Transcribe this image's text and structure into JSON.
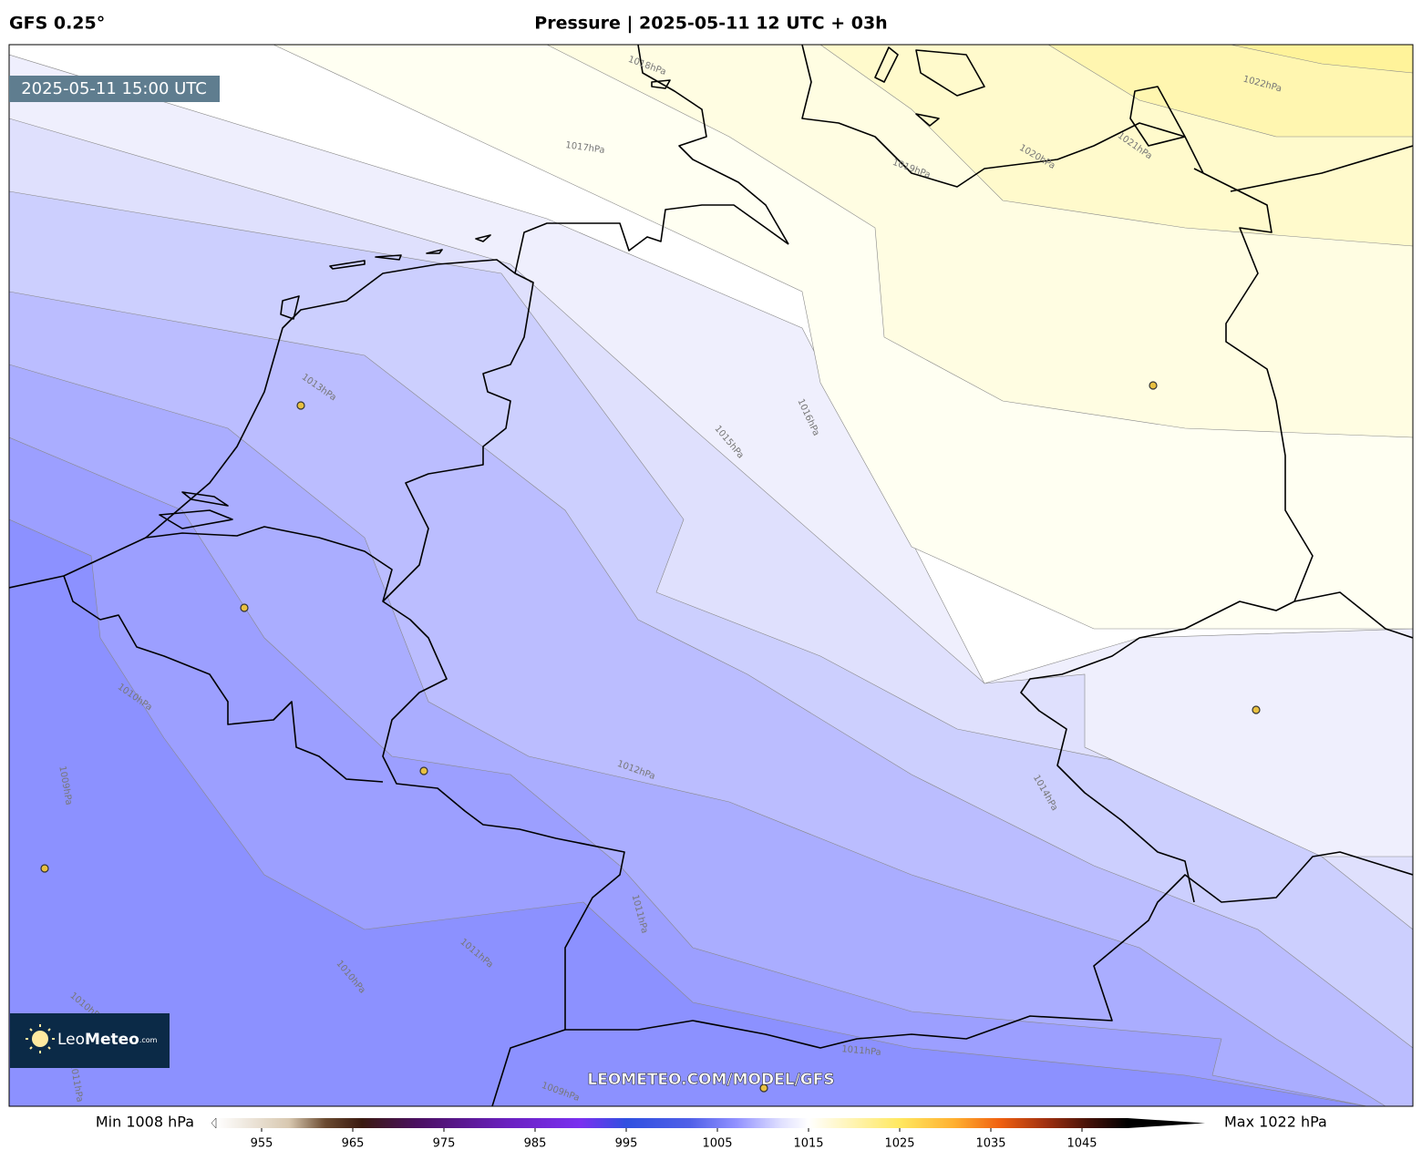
{
  "header": {
    "model": "GFS 0.25°",
    "title": "Pressure | 2025-05-11 12 UTC + 03h"
  },
  "map": {
    "valid_time": "2025-05-11 15:00 UTC",
    "watermark": "LEOMETEO.COM/MODEL/GFS",
    "contour_labels": [
      "1018hPa",
      "1017hPa",
      "1019hPa",
      "1020hPa",
      "1021hPa",
      "1022hPa",
      "1013hPa",
      "1016hPa",
      "1015hPa",
      "1012hPa",
      "1014hPa",
      "1010hPa",
      "1009hPa",
      "1011hPa",
      "1011hPa",
      "1010hPa",
      "1010hPa",
      "1011hPa",
      "1009hPa",
      "1011hPa"
    ]
  },
  "logo": {
    "leo": "Leo",
    "meteo": "Meteo",
    "com": ".com"
  },
  "colorbar": {
    "min_label": "Min 1008 hPa",
    "max_label": "Max 1022 hPa",
    "range": [
      950,
      1050
    ],
    "ticks": [
      955,
      965,
      975,
      985,
      995,
      1005,
      1015,
      1025,
      1035,
      1045
    ]
  }
}
